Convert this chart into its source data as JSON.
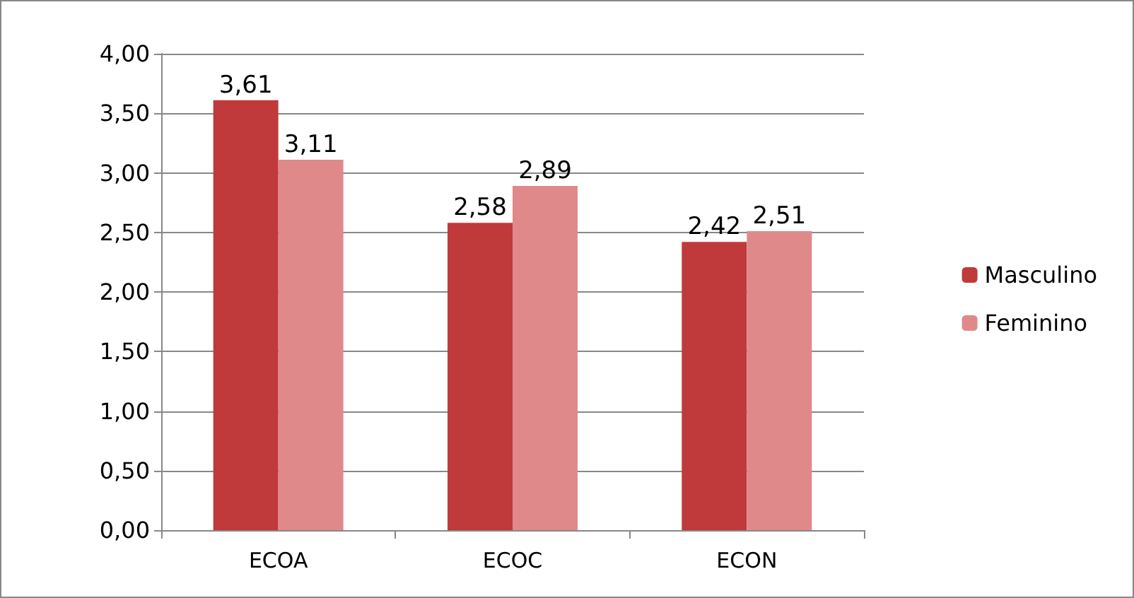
{
  "chart_data": {
    "type": "bar",
    "categories": [
      "ECOA",
      "ECOC",
      "ECON"
    ],
    "series": [
      {
        "name": "Masculino",
        "color": "#c0393b",
        "values": [
          3.61,
          2.58,
          2.42
        ],
        "value_labels": [
          "3,61",
          "2,58",
          "2,42"
        ]
      },
      {
        "name": "Feminino",
        "color": "#e0898b",
        "values": [
          3.11,
          2.89,
          2.51
        ],
        "value_labels": [
          "3,11",
          "2,89",
          "2,51"
        ]
      }
    ],
    "ylim": [
      0,
      4
    ],
    "yticks": [
      {
        "value": 0,
        "label": "0,00"
      },
      {
        "value": 0.5,
        "label": "0,50"
      },
      {
        "value": 1,
        "label": "1,00"
      },
      {
        "value": 1.5,
        "label": "1,50"
      },
      {
        "value": 2,
        "label": "2,00"
      },
      {
        "value": 2.5,
        "label": "2,50"
      },
      {
        "value": 3,
        "label": "3,00"
      },
      {
        "value": 3.5,
        "label": "3,50"
      },
      {
        "value": 4,
        "label": "4,00"
      }
    ],
    "grid": "y",
    "legend": "right"
  }
}
